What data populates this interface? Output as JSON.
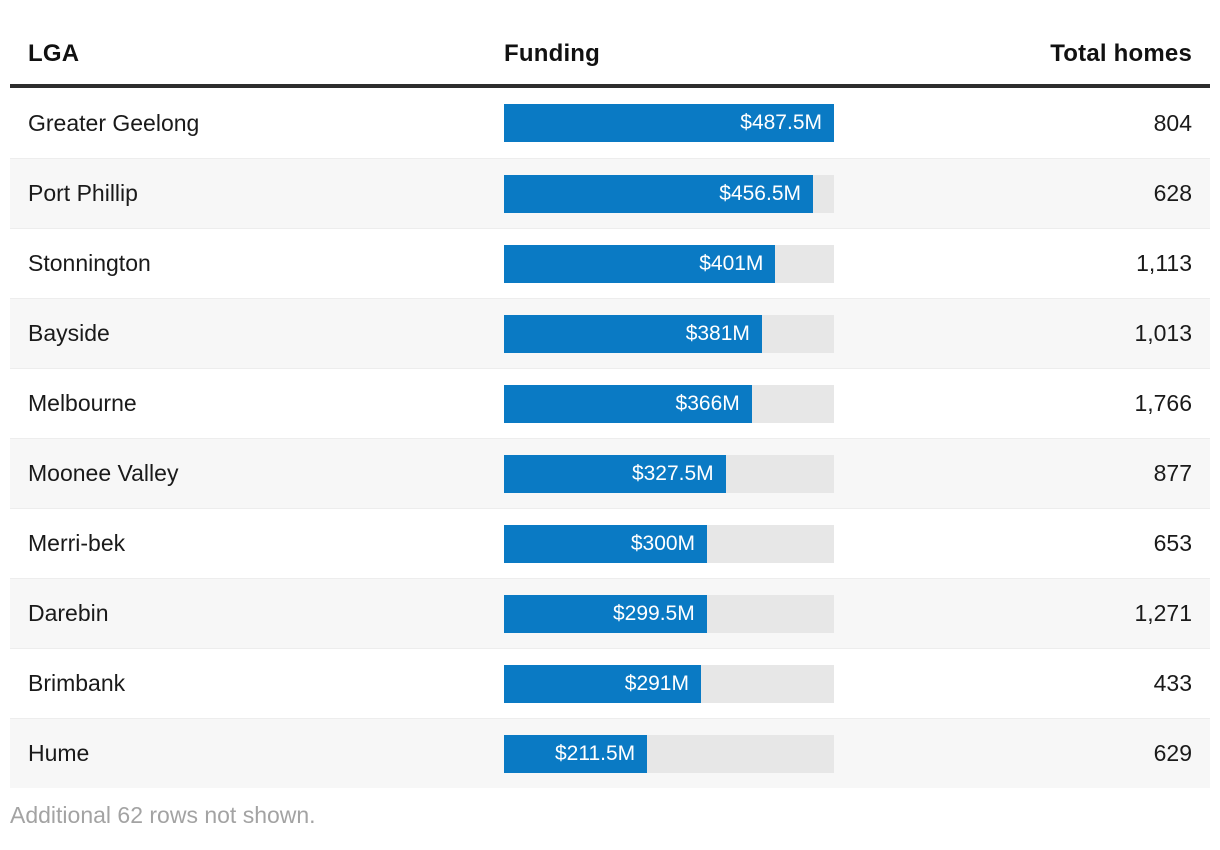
{
  "chart_data": {
    "type": "bar",
    "orientation": "horizontal",
    "title": "",
    "xlabel": "Funding",
    "ylabel": "LGA",
    "xlim": [
      0,
      487.5
    ],
    "grid": false,
    "legend_position": "none",
    "categories": [
      "Greater Geelong",
      "Port Phillip",
      "Stonnington",
      "Bayside",
      "Melbourne",
      "Moonee Valley",
      "Merri-bek",
      "Darebin",
      "Brimbank",
      "Hume"
    ],
    "series": [
      {
        "name": "Funding ($M)",
        "values": [
          487.5,
          456.5,
          401,
          381,
          366,
          327.5,
          300,
          299.5,
          291,
          211.5
        ]
      },
      {
        "name": "Total homes",
        "values": [
          804,
          628,
          1113,
          1013,
          1766,
          877,
          653,
          1271,
          433,
          629
        ]
      }
    ],
    "value_labels": [
      "$487.5M",
      "$456.5M",
      "$401M",
      "$381M",
      "$366M",
      "$327.5M",
      "$300M",
      "$299.5M",
      "$291M",
      "$211.5M"
    ],
    "annotations": [
      "Additional 62 rows not shown."
    ]
  },
  "table": {
    "headers": {
      "lga": "LGA",
      "funding": "Funding",
      "homes": "Total homes"
    },
    "rows": [
      {
        "lga": "Greater Geelong",
        "funding_label": "$487.5M",
        "funding_value": 487.5,
        "homes": "804"
      },
      {
        "lga": "Port Phillip",
        "funding_label": "$456.5M",
        "funding_value": 456.5,
        "homes": "628"
      },
      {
        "lga": "Stonnington",
        "funding_label": "$401M",
        "funding_value": 401,
        "homes": "1,113"
      },
      {
        "lga": "Bayside",
        "funding_label": "$381M",
        "funding_value": 381,
        "homes": "1,013"
      },
      {
        "lga": "Melbourne",
        "funding_label": "$366M",
        "funding_value": 366,
        "homes": "1,766"
      },
      {
        "lga": "Moonee Valley",
        "funding_label": "$327.5M",
        "funding_value": 327.5,
        "homes": "877"
      },
      {
        "lga": "Merri-bek",
        "funding_label": "$300M",
        "funding_value": 300,
        "homes": "653"
      },
      {
        "lga": "Darebin",
        "funding_label": "$299.5M",
        "funding_value": 299.5,
        "homes": "1,271"
      },
      {
        "lga": "Brimbank",
        "funding_label": "$291M",
        "funding_value": 291,
        "homes": "433"
      },
      {
        "lga": "Hume",
        "funding_label": "$211.5M",
        "funding_value": 211.5,
        "homes": "629"
      }
    ],
    "bar_scale_max": 487.5,
    "footnote": "Additional 62 rows not shown."
  },
  "colors": {
    "bar_fill": "#0a7ac4",
    "bar_track": "#e7e7e7",
    "row_alt_background": "#f7f7f7",
    "header_rule": "#2d2d2d",
    "footnote_text": "#a3a3a3"
  }
}
